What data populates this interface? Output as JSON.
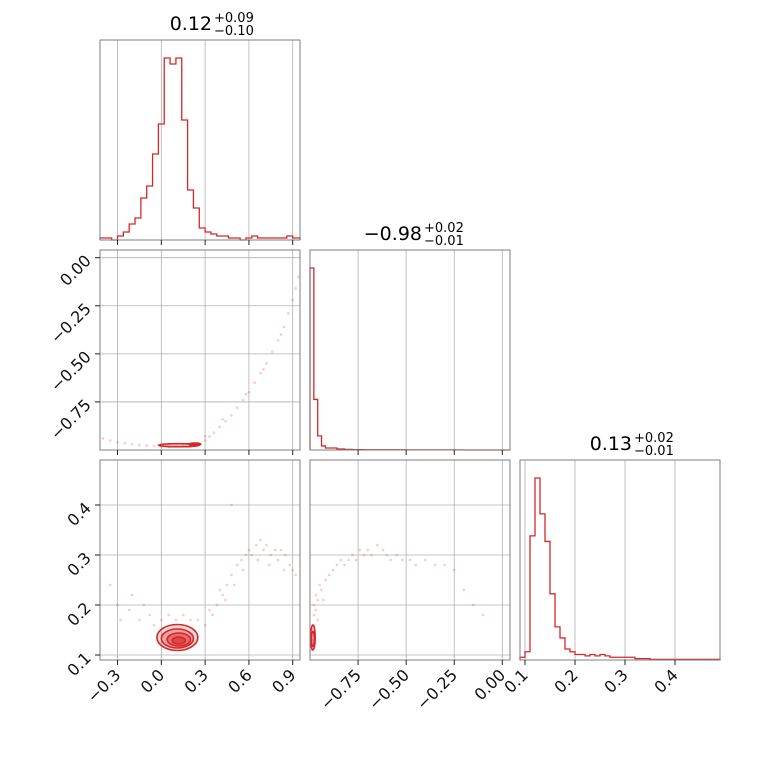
{
  "chart_data": {
    "type": "corner",
    "colors": {
      "series": "#d62728",
      "frame": "#7f7f7f",
      "grid": "#b0b0b0"
    },
    "params": [
      {
        "title": "0.12",
        "plus": "+0.09",
        "minus": "−0.10",
        "range": [
          -0.42,
          0.95
        ],
        "ticks": [
          -0.3,
          0.0,
          0.3,
          0.6,
          0.9
        ],
        "tick_labels": [
          "−0.3",
          "0.0",
          "0.3",
          "0.6",
          "0.9"
        ]
      },
      {
        "title": "−0.98",
        "plus": "+0.02",
        "minus": "−0.01",
        "range": [
          -1.0,
          0.04
        ],
        "ticks": [
          -0.75,
          -0.5,
          -0.25,
          0.0
        ],
        "tick_labels": [
          "−0.75",
          "−0.50",
          "−0.25",
          "0.00"
        ]
      },
      {
        "title": "0.13",
        "plus": "+0.02",
        "minus": "−0.01",
        "range": [
          0.09,
          0.49
        ],
        "ticks": [
          0.1,
          0.2,
          0.3,
          0.4
        ],
        "tick_labels": [
          "0.1",
          "0.2",
          "0.3",
          "0.4"
        ]
      }
    ],
    "row_axes": {
      "1": {
        "ticks": [
          0.0,
          -0.25,
          -0.5,
          -0.75
        ],
        "tick_labels": [
          "0.00",
          "−0.25",
          "−0.50",
          "−0.75"
        ]
      },
      "2": {
        "ticks": [
          0.4,
          0.3,
          0.2,
          0.1
        ],
        "tick_labels": [
          "0.4",
          "0.3",
          "0.2",
          "0.1"
        ]
      }
    },
    "histograms": [
      {
        "param": 0,
        "bin_edges": [
          -0.42,
          -0.38,
          -0.34,
          -0.3,
          -0.26,
          -0.22,
          -0.18,
          -0.14,
          -0.1,
          -0.06,
          -0.02,
          0.02,
          0.06,
          0.1,
          0.14,
          0.18,
          0.22,
          0.26,
          0.3,
          0.34,
          0.38,
          0.42,
          0.46,
          0.5,
          0.54,
          0.58,
          0.62,
          0.66,
          0.7,
          0.74,
          0.78,
          0.82,
          0.86,
          0.9,
          0.95
        ],
        "counts": [
          1,
          1,
          0,
          2,
          4,
          8,
          11,
          21,
          27,
          43,
          58,
          91,
          88,
          91,
          60,
          25,
          16,
          6,
          4,
          3,
          2,
          2,
          1,
          1,
          0,
          1,
          2,
          1,
          1,
          1,
          1,
          1,
          2,
          1
        ]
      },
      {
        "param": 1,
        "bin_edges": [
          -1.0,
          -0.98,
          -0.96,
          -0.94,
          -0.92,
          -0.9,
          -0.88,
          -0.86,
          -0.84,
          -0.82,
          -0.8,
          -0.78,
          -0.76,
          -0.74,
          -0.72,
          -0.7,
          -0.68,
          -0.66,
          -0.64,
          -0.62,
          -0.6,
          -0.58,
          -0.56,
          -0.54,
          -0.52,
          -0.5,
          -0.4,
          -0.3,
          -0.2,
          -0.1,
          0.04
        ],
        "counts": [
          90,
          25,
          7,
          2,
          1,
          1,
          1,
          0.5,
          0.5,
          0.3,
          0.3,
          0.2,
          0.2,
          0.2,
          0.1,
          0.1,
          0.1,
          0.1,
          0.1,
          0.1,
          0.1,
          0.1,
          0.1,
          0.1,
          0.1,
          0.05,
          0.05,
          0.05,
          0,
          0
        ]
      },
      {
        "param": 2,
        "bin_edges": [
          0.09,
          0.1,
          0.11,
          0.12,
          0.13,
          0.14,
          0.15,
          0.16,
          0.17,
          0.18,
          0.19,
          0.2,
          0.21,
          0.22,
          0.23,
          0.24,
          0.25,
          0.26,
          0.27,
          0.28,
          0.29,
          0.3,
          0.31,
          0.32,
          0.33,
          0.34,
          0.35,
          0.49
        ],
        "counts": [
          1,
          3,
          45,
          66,
          53,
          43,
          24,
          12,
          8,
          4,
          3,
          2,
          2,
          1.5,
          2,
          1.5,
          2,
          1.5,
          1,
          1,
          1,
          1,
          1,
          0.5,
          0.5,
          0.5,
          0.2
        ]
      }
    ],
    "scatter": [
      {
        "x": 0,
        "y": 1,
        "points": [
          [
            -0.35,
            -0.95
          ],
          [
            -0.3,
            -0.96
          ],
          [
            -0.25,
            -0.965
          ],
          [
            -0.2,
            -0.97
          ],
          [
            -0.15,
            -0.975
          ],
          [
            -0.1,
            -0.978
          ],
          [
            -0.05,
            -0.98
          ],
          [
            0.0,
            -0.982
          ],
          [
            0.05,
            -0.983
          ],
          [
            0.1,
            -0.982
          ],
          [
            0.15,
            -0.98
          ],
          [
            0.2,
            -0.975
          ],
          [
            0.25,
            -0.965
          ],
          [
            0.3,
            -0.95
          ],
          [
            0.33,
            -0.93
          ],
          [
            0.36,
            -0.91
          ],
          [
            0.4,
            -0.88
          ],
          [
            0.44,
            -0.85
          ],
          [
            0.48,
            -0.82
          ],
          [
            0.52,
            -0.78
          ],
          [
            0.56,
            -0.74
          ],
          [
            0.6,
            -0.7
          ],
          [
            0.64,
            -0.65
          ],
          [
            0.68,
            -0.6
          ],
          [
            0.72,
            -0.55
          ],
          [
            0.76,
            -0.49
          ],
          [
            0.8,
            -0.43
          ],
          [
            0.84,
            -0.36
          ],
          [
            0.87,
            -0.29
          ],
          [
            0.9,
            -0.22
          ],
          [
            0.92,
            -0.16
          ],
          [
            0.94,
            -0.1
          ],
          [
            0.42,
            -0.84
          ],
          [
            0.58,
            -0.71
          ],
          [
            0.7,
            -0.58
          ],
          [
            0.82,
            -0.4
          ],
          [
            0.3,
            -0.93
          ],
          [
            -0.4,
            -0.94
          ]
        ]
      },
      {
        "x": 0,
        "y": 2,
        "points": [
          [
            -0.35,
            0.24
          ],
          [
            -0.3,
            0.2
          ],
          [
            -0.28,
            0.17
          ],
          [
            -0.22,
            0.19
          ],
          [
            -0.2,
            0.22
          ],
          [
            -0.15,
            0.17
          ],
          [
            -0.12,
            0.2
          ],
          [
            -0.08,
            0.18
          ],
          [
            -0.05,
            0.16
          ],
          [
            0.0,
            0.17
          ],
          [
            0.05,
            0.18
          ],
          [
            0.1,
            0.17
          ],
          [
            0.15,
            0.18
          ],
          [
            0.2,
            0.17
          ],
          [
            0.25,
            0.17
          ],
          [
            0.3,
            0.16
          ],
          [
            0.35,
            0.18
          ],
          [
            0.38,
            0.2
          ],
          [
            0.42,
            0.22
          ],
          [
            0.45,
            0.24
          ],
          [
            0.48,
            0.26
          ],
          [
            0.5,
            0.24
          ],
          [
            0.52,
            0.28
          ],
          [
            0.55,
            0.29
          ],
          [
            0.58,
            0.3
          ],
          [
            0.6,
            0.31
          ],
          [
            0.62,
            0.3
          ],
          [
            0.65,
            0.32
          ],
          [
            0.68,
            0.33
          ],
          [
            0.7,
            0.31
          ],
          [
            0.72,
            0.32
          ],
          [
            0.75,
            0.3
          ],
          [
            0.78,
            0.31
          ],
          [
            0.8,
            0.29
          ],
          [
            0.82,
            0.31
          ],
          [
            0.85,
            0.3
          ],
          [
            0.88,
            0.28
          ],
          [
            0.9,
            0.27
          ],
          [
            0.92,
            0.26
          ],
          [
            0.48,
            0.4
          ],
          [
            0.4,
            0.23
          ],
          [
            0.33,
            0.19
          ],
          [
            0.44,
            0.21
          ],
          [
            0.56,
            0.27
          ],
          [
            0.66,
            0.29
          ],
          [
            0.74,
            0.28
          ],
          [
            0.84,
            0.27
          ]
        ]
      },
      {
        "x": 1,
        "y": 2,
        "points": [
          [
            -0.99,
            0.13
          ],
          [
            -0.99,
            0.15
          ],
          [
            -0.98,
            0.18
          ],
          [
            -0.98,
            0.2
          ],
          [
            -0.97,
            0.22
          ],
          [
            -0.96,
            0.21
          ],
          [
            -0.95,
            0.24
          ],
          [
            -0.94,
            0.23
          ],
          [
            -0.92,
            0.25
          ],
          [
            -0.9,
            0.26
          ],
          [
            -0.88,
            0.27
          ],
          [
            -0.86,
            0.28
          ],
          [
            -0.84,
            0.29
          ],
          [
            -0.82,
            0.28
          ],
          [
            -0.8,
            0.29
          ],
          [
            -0.78,
            0.3
          ],
          [
            -0.76,
            0.29
          ],
          [
            -0.74,
            0.31
          ],
          [
            -0.72,
            0.3
          ],
          [
            -0.7,
            0.31
          ],
          [
            -0.68,
            0.3
          ],
          [
            -0.65,
            0.32
          ],
          [
            -0.62,
            0.31
          ],
          [
            -0.6,
            0.3
          ],
          [
            -0.58,
            0.29
          ],
          [
            -0.55,
            0.3
          ],
          [
            -0.52,
            0.29
          ],
          [
            -0.48,
            0.29
          ],
          [
            -0.45,
            0.28
          ],
          [
            -0.4,
            0.29
          ],
          [
            -0.35,
            0.28
          ],
          [
            -0.3,
            0.28
          ],
          [
            -0.25,
            0.27
          ],
          [
            -0.2,
            0.23
          ],
          [
            -0.15,
            0.2
          ],
          [
            -0.1,
            0.18
          ],
          [
            -0.98,
            0.16
          ],
          [
            -0.97,
            0.19
          ],
          [
            -0.96,
            0.17
          ],
          [
            -0.93,
            0.21
          ],
          [
            -0.99,
            0.11
          ]
        ]
      }
    ],
    "contours": [
      {
        "x": 0,
        "y": 2,
        "levels": [
          {
            "cx": 0.11,
            "cy": 0.135,
            "rx": 0.14,
            "ry": 0.026
          },
          {
            "cx": 0.11,
            "cy": 0.133,
            "rx": 0.11,
            "ry": 0.019
          },
          {
            "cx": 0.12,
            "cy": 0.131,
            "rx": 0.08,
            "ry": 0.013
          },
          {
            "cx": 0.12,
            "cy": 0.129,
            "rx": 0.045,
            "ry": 0.007
          }
        ]
      },
      {
        "x": 0,
        "y": 1,
        "levels": [
          {
            "cx": 0.12,
            "cy": -0.975,
            "rx": 0.14,
            "ry": 0.008
          },
          {
            "cx": 0.23,
            "cy": -0.97,
            "rx": 0.04,
            "ry": 0.006
          }
        ]
      },
      {
        "x": 1,
        "y": 2,
        "levels": [
          {
            "cx": -0.985,
            "cy": 0.135,
            "rx": 0.012,
            "ry": 0.025
          },
          {
            "cx": -0.985,
            "cy": 0.132,
            "rx": 0.008,
            "ry": 0.015
          }
        ]
      }
    ]
  }
}
